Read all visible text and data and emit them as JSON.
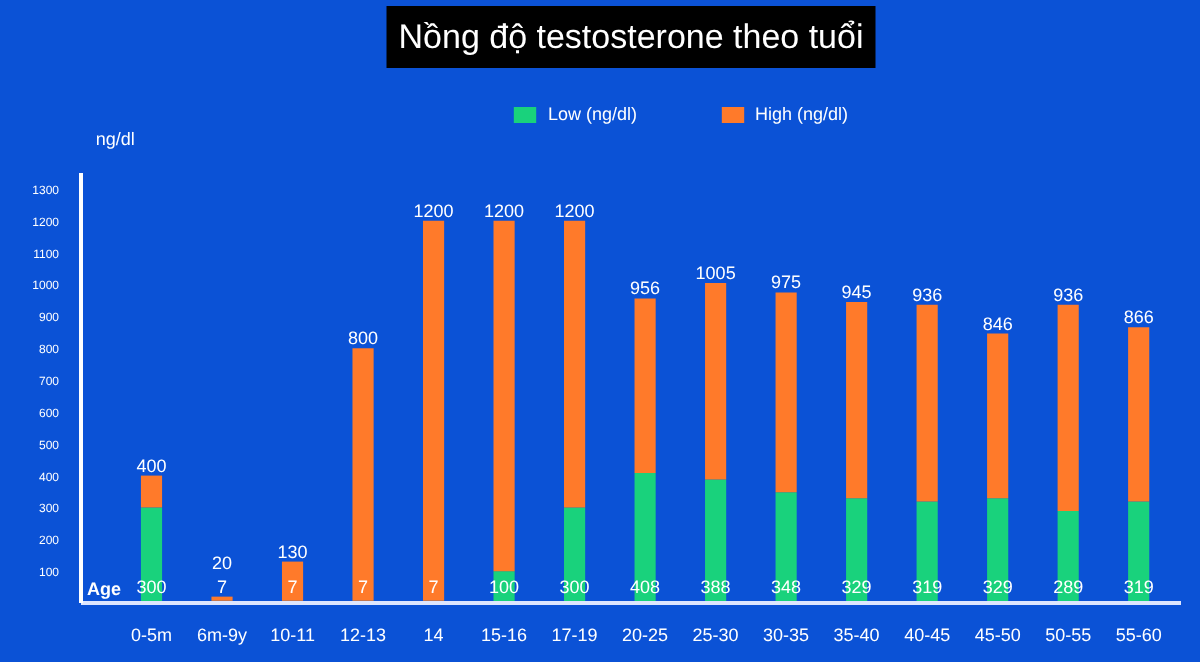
{
  "chart_data": {
    "type": "bar",
    "title": "Nồng độ testosterone theo tuổi",
    "xlabel": "Age",
    "ylabel": "ng/dl",
    "stacked": true,
    "categories": [
      "0-5m",
      "6m-9y",
      "10-11",
      "12-13",
      "14",
      "15-16",
      "17-19",
      "20-25",
      "25-30",
      "30-35",
      "35-40",
      "40-45",
      "45-50",
      "50-55",
      "55-60"
    ],
    "series": [
      {
        "name": "Low (ng/dl)",
        "color": "#19d27c",
        "values": [
          300,
          7,
          7,
          7,
          7,
          100,
          300,
          408,
          388,
          348,
          329,
          319,
          329,
          289,
          319
        ],
        "value_labels": [
          "300",
          "7",
          "7",
          "7",
          "7",
          "100",
          "300",
          "408",
          "388",
          "348",
          "329",
          "319",
          "329",
          "289",
          "319"
        ]
      },
      {
        "name": "High (ng/dl)",
        "color": "#ff7a2a",
        "values": [
          100,
          13,
          123,
          793,
          1193,
          1100,
          900,
          548,
          617,
          627,
          616,
          617,
          517,
          647,
          547
        ]
      }
    ],
    "totals": [
      "400",
      "20",
      "130",
      "800",
      "1200",
      "1200",
      "1200",
      "956",
      "1005",
      "975",
      "945",
      "936",
      "846",
      "936",
      "866"
    ],
    "ylim": [
      0,
      1350
    ],
    "yticks": [
      100,
      200,
      300,
      400,
      500,
      600,
      700,
      800,
      900,
      1000,
      1100,
      1200,
      1300
    ],
    "grid": false,
    "legend": "top"
  }
}
